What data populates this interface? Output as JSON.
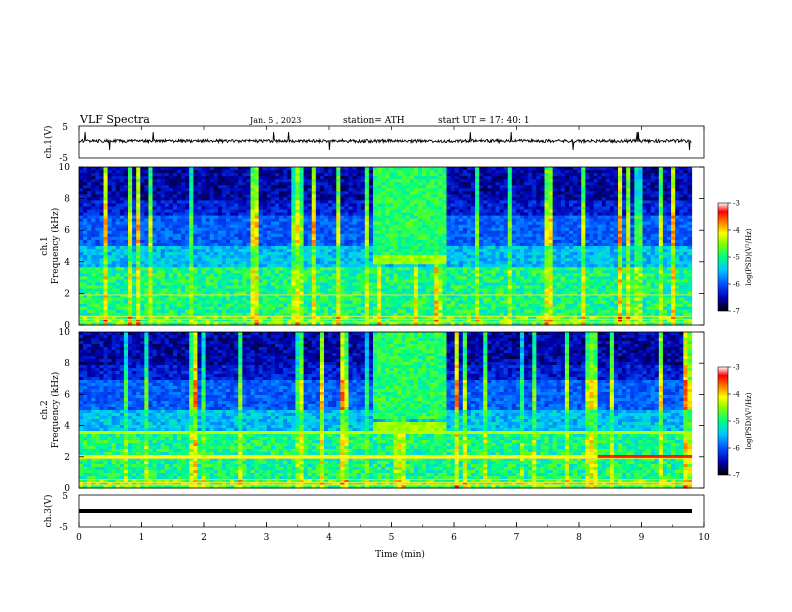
{
  "header": {
    "title": "VLF  Spectra",
    "date": "Jan.  5  , 2023",
    "station": "station= ATH",
    "start_ut": "start  UT  =   17: 40: 1"
  },
  "chart_data": [
    {
      "type": "line",
      "panel": "ch1-waveform",
      "ylabel": "ch.1(V)",
      "yticks": [
        "5",
        "-5"
      ],
      "ylim": [
        -5,
        5
      ],
      "xlim": [
        0,
        10
      ],
      "description_of_trace": "noisy black trace near 0 V with occasional spikes"
    },
    {
      "type": "heatmap",
      "panel": "ch1-spectrogram",
      "ylabel": "ch.1\nFrequency  (kHz)",
      "ylabel_line1": "ch.1",
      "ylabel_line2": "Frequency  (kHz)",
      "yticks": [
        "0",
        "2",
        "4",
        "6",
        "8",
        "10"
      ],
      "ylim": [
        0,
        10
      ],
      "xlim": [
        0,
        10
      ],
      "colorbar": {
        "label": "log(PSD)(V²/Hz)",
        "ticks": [
          "-3",
          "-4",
          "-5",
          "-6",
          "-7"
        ],
        "range": [
          -7,
          -3
        ],
        "colors": [
          "#000000",
          "#0000c0",
          "#0050ff",
          "#00c0ff",
          "#00ff80",
          "#80ff00",
          "#ffff00",
          "#ff8000",
          "#ff0000",
          "#ffffff"
        ]
      },
      "features": {
        "burst_minutes": [
          4.7,
          5.9
        ],
        "burst_band_khz": [
          3.8,
          4.2
        ],
        "data_end_minute": 9.8
      }
    },
    {
      "type": "heatmap",
      "panel": "ch2-spectrogram",
      "ylabel": "ch.2\nFrequency  (kHz)",
      "ylabel_line1": "ch.2",
      "ylabel_line2": "Frequency  (kHz)",
      "yticks": [
        "0",
        "2",
        "4",
        "6",
        "8",
        "10"
      ],
      "ylim": [
        0,
        10
      ],
      "xlim": [
        0,
        10
      ],
      "colorbar": {
        "label": "log(PSD)(V²/Hz)",
        "ticks": [
          "-3",
          "-4",
          "-5",
          "-6",
          "-7"
        ],
        "range": [
          -7,
          -3
        ]
      },
      "features": {
        "burst_minutes": [
          4.7,
          5.9
        ],
        "burst_band_khz": [
          3.6,
          4.0
        ],
        "line_khz": 2.0,
        "data_end_minute": 9.8
      }
    },
    {
      "type": "line",
      "panel": "ch3-waveform",
      "ylabel": "ch.3(V)",
      "yticks": [
        "5",
        "-5"
      ],
      "ylim": [
        -5,
        5
      ],
      "xlim": [
        0,
        10
      ],
      "xlabel": "Time  (min)",
      "xticks": [
        "0",
        "1",
        "2",
        "3",
        "4",
        "5",
        "6",
        "7",
        "8",
        "9",
        "10"
      ],
      "constant_value": 0
    }
  ]
}
